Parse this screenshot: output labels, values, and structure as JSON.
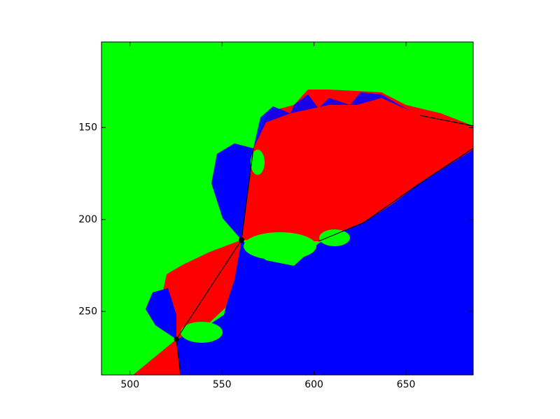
{
  "chart_data": {
    "type": "image",
    "xlim": [
      484.5,
      686.5
    ],
    "ylim": [
      284.5,
      103.5
    ],
    "xticks": [
      500,
      550,
      600,
      650
    ],
    "yticks": [
      150,
      200,
      250
    ],
    "colors": [
      "#00ff00",
      "#ff0000",
      "#0000ff"
    ]
  }
}
